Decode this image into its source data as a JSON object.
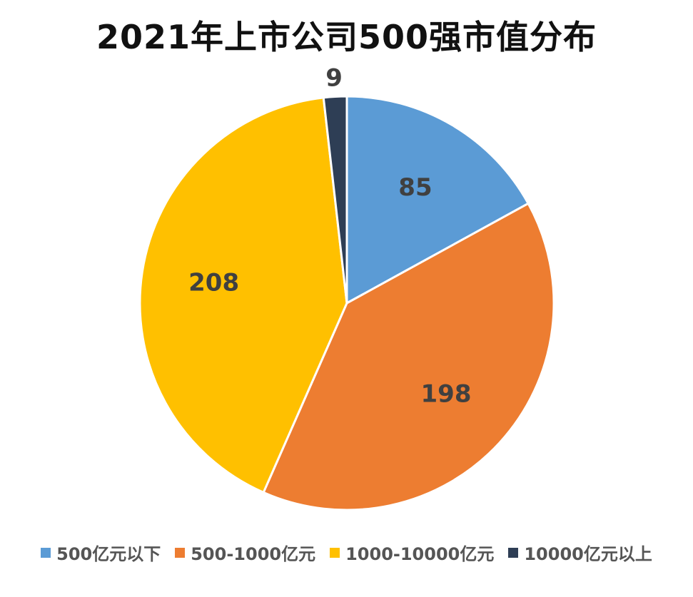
{
  "chart_data": {
    "type": "pie",
    "title": "2021年上市公司500强市值分布",
    "categories": [
      "500亿元以下",
      "500-1000亿元",
      "1000-10000亿元",
      "10000亿元以上"
    ],
    "values": [
      85,
      198,
      208,
      9
    ],
    "colors": [
      "#5B9BD5",
      "#ED7D31",
      "#FFC000",
      "#2E3E55"
    ],
    "data_labels": [
      "85",
      "198",
      "208",
      "9"
    ],
    "legend_position": "bottom",
    "start": "top",
    "direction": "clockwise"
  }
}
